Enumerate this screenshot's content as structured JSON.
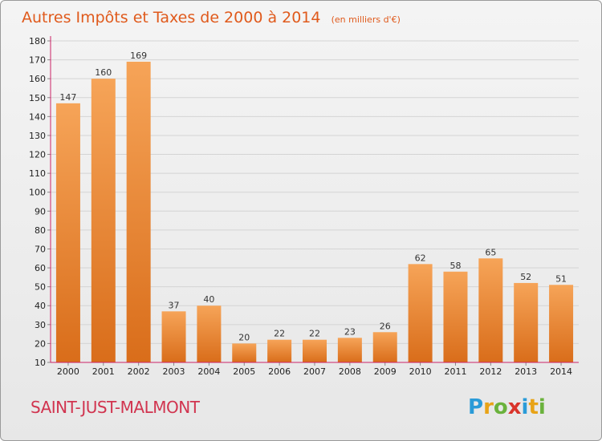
{
  "title": "Autres Impôts et Taxes de 2000 à 2014",
  "unit_label": "(en milliers d'€)",
  "commune": "SAINT-JUST-MALMONT",
  "logo": {
    "text": "Proxiti"
  },
  "colors": {
    "title": "#e05a1c",
    "commune": "#d1344f",
    "bar_top": "#f6a458",
    "bar_bottom": "#d96d1a",
    "axis": "#cc2266"
  },
  "chart_data": {
    "type": "bar",
    "categories": [
      "2000",
      "2001",
      "2002",
      "2003",
      "2004",
      "2005",
      "2006",
      "2007",
      "2008",
      "2009",
      "2010",
      "2011",
      "2012",
      "2013",
      "2014"
    ],
    "values": [
      147,
      160,
      169,
      37,
      40,
      20,
      22,
      22,
      23,
      26,
      62,
      58,
      65,
      52,
      51
    ],
    "ylim": [
      10,
      180
    ],
    "yticks": [
      10,
      20,
      30,
      40,
      50,
      60,
      70,
      80,
      90,
      100,
      110,
      120,
      130,
      140,
      150,
      160,
      170,
      180
    ],
    "grid": true
  }
}
